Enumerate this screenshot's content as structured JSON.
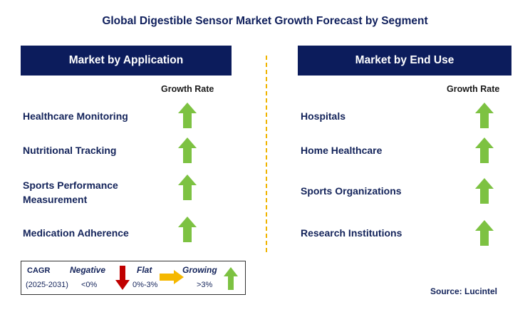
{
  "title": "Global Digestible Sensor Market Growth Forecast by Segment",
  "left_panel": {
    "header": "Market by Application",
    "growth_rate_label": "Growth Rate",
    "segments": [
      {
        "label": "Healthcare Monitoring",
        "trend": "growing"
      },
      {
        "label": "Nutritional Tracking",
        "trend": "growing"
      },
      {
        "label": "Sports Performance Measurement",
        "trend": "growing"
      },
      {
        "label": "Medication Adherence",
        "trend": "growing"
      }
    ]
  },
  "right_panel": {
    "header": "Market by End Use",
    "growth_rate_label": "Growth Rate",
    "segments": [
      {
        "label": "Hospitals",
        "trend": "growing"
      },
      {
        "label": "Home Healthcare",
        "trend": "growing"
      },
      {
        "label": "Sports Organizations",
        "trend": "growing"
      },
      {
        "label": "Research Institutions",
        "trend": "growing"
      }
    ]
  },
  "legend": {
    "cagr_label": "CAGR",
    "period": "(2025-2031)",
    "negative": {
      "label": "Negative",
      "range": "<0%",
      "color": "#c00000"
    },
    "flat": {
      "label": "Flat",
      "range": "0%-3%",
      "color": "#f5b800"
    },
    "growing": {
      "label": "Growing",
      "range": ">3%",
      "color": "#7dc242"
    }
  },
  "source": "Source: Lucintel"
}
